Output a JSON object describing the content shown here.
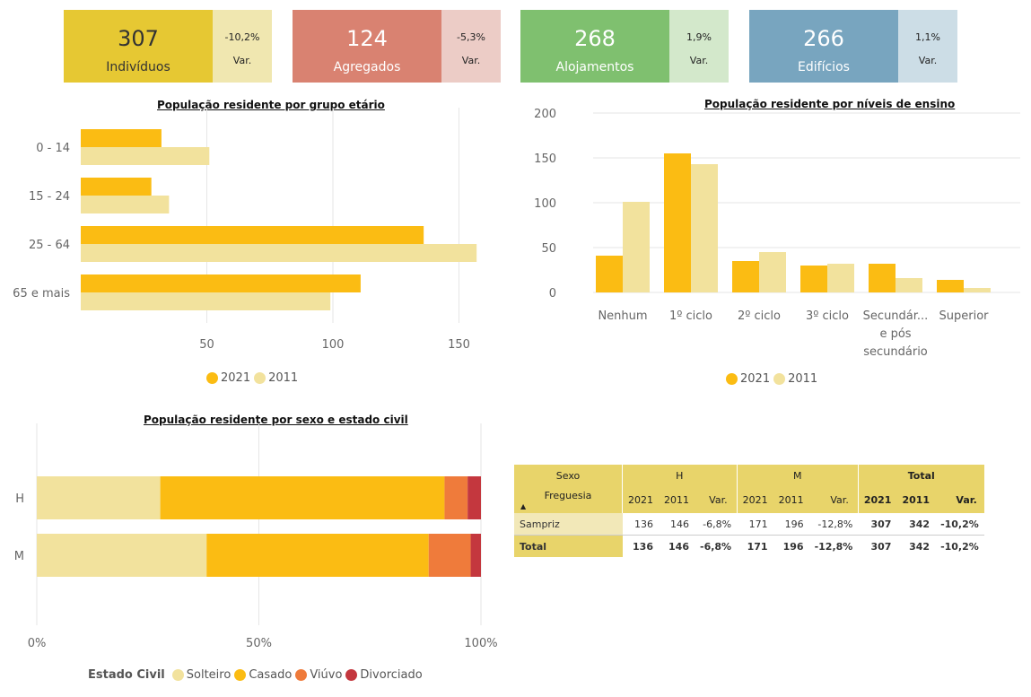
{
  "kpis": [
    {
      "value": "307",
      "label": "Indivíduos",
      "var": "-10,2%",
      "var_label": "Var.",
      "color": "#e6c833",
      "side_color": "#f0e7b0"
    },
    {
      "value": "124",
      "label": "Agregados",
      "var": "-5,3%",
      "var_label": "Var.",
      "color": "#d98271",
      "side_color": "#ecccc6"
    },
    {
      "value": "268",
      "label": "Alojamentos",
      "var": "1,9%",
      "var_label": "Var.",
      "color": "#7fc06f",
      "side_color": "#d3e8cb"
    },
    {
      "value": "266",
      "label": "Edifícios",
      "var": "1,1%",
      "var_label": "Var.",
      "color": "#78a5bf",
      "side_color": "#ccdde6"
    }
  ],
  "colors": {
    "y2021": "#fbbc13",
    "y2011": "#f2e29d",
    "solteiro": "#f2e29d",
    "casado": "#fbbc13",
    "viuvo": "#ef7b3b",
    "divorciado": "#c4373e",
    "table_header": "#e8d46a"
  },
  "chart_data": [
    {
      "type": "bar",
      "orientation": "horizontal",
      "title": "População residente por grupo etário",
      "categories": [
        "0 - 14",
        "15 - 24",
        "25 - 64",
        "65 e mais"
      ],
      "series": [
        {
          "name": "2021",
          "values": [
            32,
            28,
            136,
            111
          ]
        },
        {
          "name": "2011",
          "values": [
            51,
            35,
            157,
            99
          ]
        }
      ],
      "xlim": [
        0,
        160
      ],
      "xticks": [
        50,
        100,
        150
      ],
      "grid": true,
      "legend": "bottom"
    },
    {
      "type": "bar",
      "title": "População residente por níveis de ensino",
      "categories": [
        "Nenhum",
        "1º ciclo",
        "2º ciclo",
        "3º ciclo",
        "Secundár... e pós secundário",
        "Superior"
      ],
      "category_lines": [
        [
          "Nenhum"
        ],
        [
          "1º ciclo"
        ],
        [
          "2º ciclo"
        ],
        [
          "3º ciclo"
        ],
        [
          "Secundár...",
          "e pós",
          "secundário"
        ],
        [
          "Superior"
        ]
      ],
      "series": [
        {
          "name": "2021",
          "values": [
            41,
            155,
            35,
            30,
            32,
            14
          ]
        },
        {
          "name": "2011",
          "values": [
            101,
            143,
            45,
            32,
            16,
            5
          ]
        }
      ],
      "ylim": [
        0,
        200
      ],
      "yticks": [
        0,
        50,
        100,
        150,
        200
      ],
      "grid": true,
      "legend": "bottom"
    },
    {
      "type": "bar",
      "orientation": "horizontal",
      "stacked": "100%",
      "title": "População residente por sexo e estado civil",
      "categories": [
        "H",
        "M"
      ],
      "series": [
        {
          "name": "Solteiro",
          "values": [
            27.8,
            38
          ]
        },
        {
          "name": "Casado",
          "values": [
            64,
            49.7
          ]
        },
        {
          "name": "Viúvo",
          "values": [
            5.2,
            9.4
          ]
        },
        {
          "name": "Divorciado",
          "values": [
            3,
            2.3
          ]
        }
      ],
      "xticks": [
        "0%",
        "50%",
        "100%"
      ],
      "legend_title": "Estado Civil",
      "legend": "bottom"
    }
  ],
  "table": {
    "sexo_label": "Sexo",
    "freguesia_label": "Freguesia",
    "groups": [
      "H",
      "M",
      "Total"
    ],
    "sub": [
      "2021",
      "2011",
      "Var."
    ],
    "rows": [
      {
        "name": "Sampriz",
        "cells": [
          "136",
          "146",
          "-6,8%",
          "171",
          "196",
          "-12,8%",
          "307",
          "342",
          "-10,2%"
        ]
      },
      {
        "name": "Total",
        "cells": [
          "136",
          "146",
          "-6,8%",
          "171",
          "196",
          "-12,8%",
          "307",
          "342",
          "-10,2%"
        ]
      }
    ]
  }
}
